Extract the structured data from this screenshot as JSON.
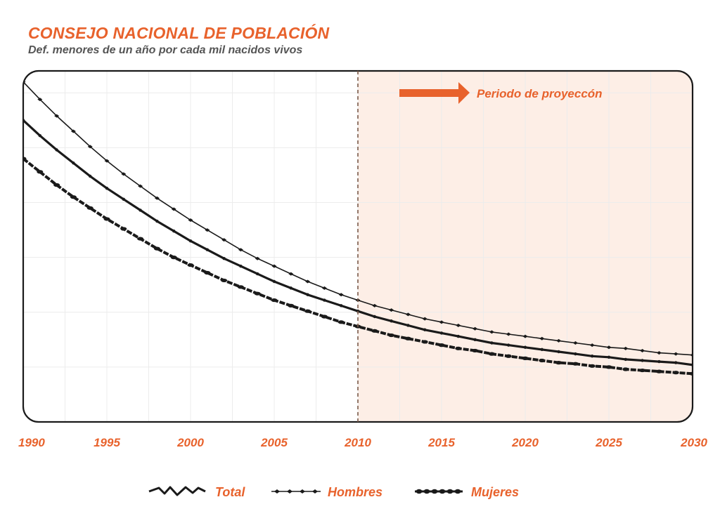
{
  "title": "CONSEJO NACIONAL DE POBLACIÓN",
  "subtitle": "Def. menores de un año por cada mil nacidos vivos",
  "chart_data": {
    "type": "line",
    "title": "CONSEJO NACIONAL DE POBLACIÓN",
    "subtitle": "Def. menores de un año por cada mil nacidos vivos",
    "xlabel": "",
    "ylabel": "",
    "xlim": [
      1990,
      2030
    ],
    "ylim": [
      5,
      37
    ],
    "x_ticks": [
      1990,
      1995,
      2000,
      2005,
      2010,
      2015,
      2020,
      2025,
      2030
    ],
    "y_ticks_labeled": false,
    "grid": true,
    "projection_start": 2010,
    "projection_label": "Periodo de proyeccón",
    "legend_position": "bottom",
    "x": [
      1990,
      1991,
      1992,
      1993,
      1994,
      1995,
      1996,
      1997,
      1998,
      1999,
      2000,
      2001,
      2002,
      2003,
      2004,
      2005,
      2006,
      2007,
      2008,
      2009,
      2010,
      2011,
      2012,
      2013,
      2014,
      2015,
      2016,
      2017,
      2018,
      2019,
      2020,
      2021,
      2022,
      2023,
      2024,
      2025,
      2026,
      2027,
      2028,
      2029,
      2030
    ],
    "series": [
      {
        "name": "Total",
        "values": [
          32.5,
          31.1,
          29.8,
          28.6,
          27.4,
          26.3,
          25.3,
          24.3,
          23.3,
          22.4,
          21.5,
          20.7,
          19.9,
          19.2,
          18.5,
          17.8,
          17.2,
          16.6,
          16.1,
          15.6,
          15.1,
          14.6,
          14.2,
          13.8,
          13.4,
          13.1,
          12.8,
          12.5,
          12.2,
          12.0,
          11.8,
          11.6,
          11.4,
          11.2,
          11.0,
          10.9,
          10.7,
          10.6,
          10.5,
          10.4,
          10.2
        ]
      },
      {
        "name": "Hombres",
        "values": [
          36.0,
          34.4,
          32.9,
          31.5,
          30.1,
          28.8,
          27.6,
          26.5,
          25.4,
          24.4,
          23.4,
          22.5,
          21.6,
          20.7,
          19.9,
          19.2,
          18.5,
          17.8,
          17.2,
          16.6,
          16.1,
          15.6,
          15.2,
          14.8,
          14.4,
          14.1,
          13.8,
          13.5,
          13.2,
          13.0,
          12.8,
          12.6,
          12.4,
          12.2,
          12.0,
          11.8,
          11.7,
          11.5,
          11.3,
          11.2,
          11.1
        ]
      },
      {
        "name": "Mujeres",
        "values": [
          29.0,
          27.8,
          26.6,
          25.5,
          24.5,
          23.5,
          22.6,
          21.7,
          20.8,
          20.0,
          19.3,
          18.6,
          17.9,
          17.3,
          16.7,
          16.1,
          15.6,
          15.1,
          14.6,
          14.1,
          13.7,
          13.3,
          12.9,
          12.6,
          12.3,
          12.0,
          11.7,
          11.5,
          11.2,
          11.0,
          10.8,
          10.6,
          10.4,
          10.3,
          10.1,
          10.0,
          9.8,
          9.7,
          9.6,
          9.5,
          9.4
        ]
      }
    ]
  }
}
